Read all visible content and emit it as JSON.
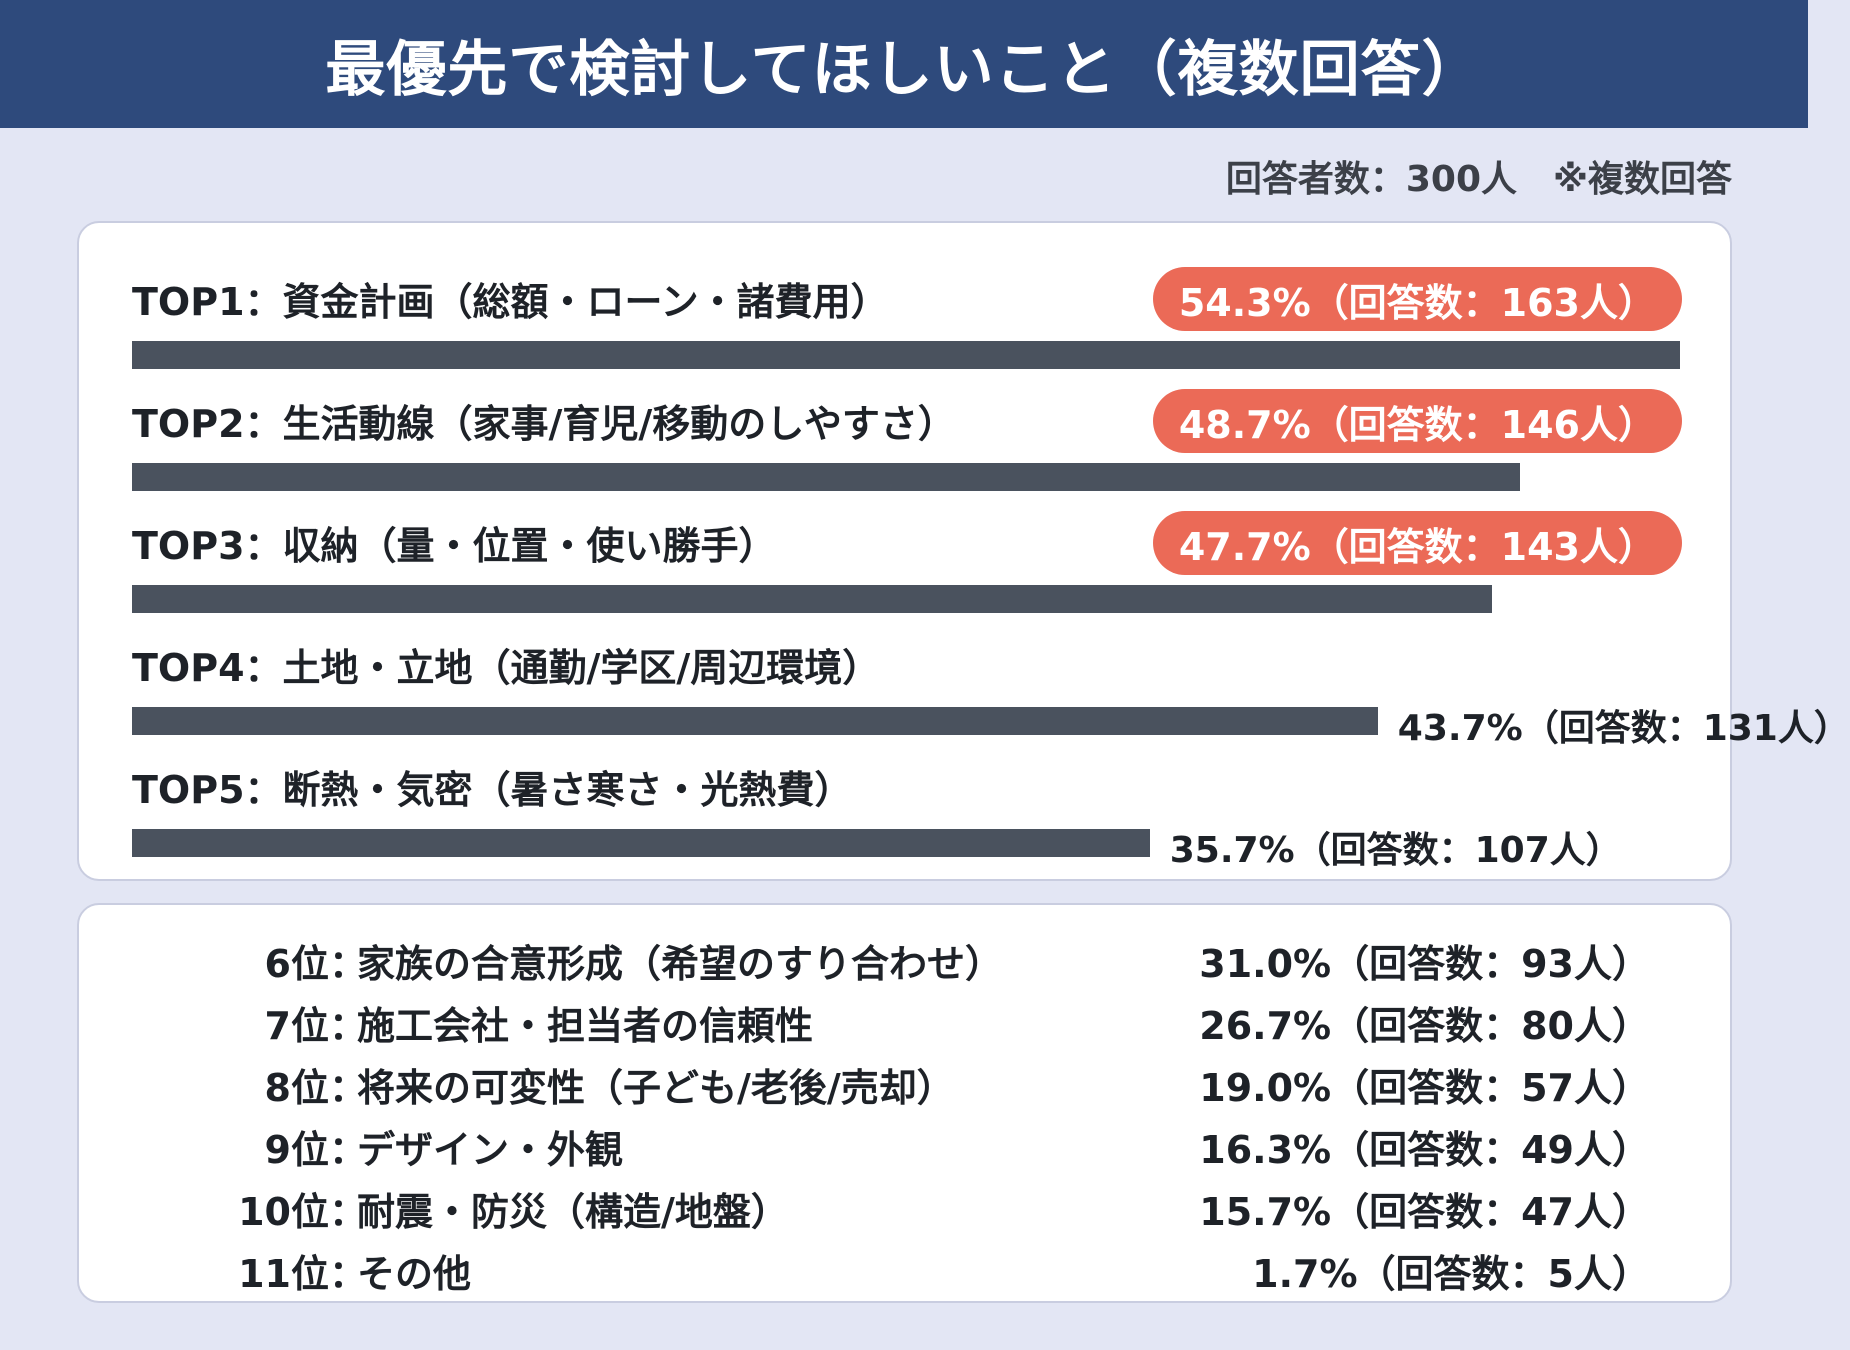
{
  "title": "最優先で検討してほしいこと（複数回答）",
  "note": {
    "respondents": "回答者数：300人",
    "multi": "※複数回答"
  },
  "colors": {
    "header": "#2e4a7c",
    "bar": "#4a525e",
    "highlight": "#eb6a57",
    "background": "#e3e6f4"
  },
  "chart_data": {
    "type": "bar",
    "orientation": "horizontal",
    "title": "最優先で検討してほしいこと（複数回答）",
    "top": [
      {
        "label": "TOP1：資金計画（総額・ローン・諸費用）",
        "value": 54.3,
        "count": 163,
        "text": "54.3%（回答数：163人）",
        "highlight": true
      },
      {
        "label": "TOP2：生活動線（家事/育児/移動のしやすさ）",
        "value": 48.7,
        "count": 146,
        "text": "48.7%（回答数：146人）",
        "highlight": true
      },
      {
        "label": "TOP3：収納（量・位置・使い勝手）",
        "value": 47.7,
        "count": 143,
        "text": "47.7%（回答数：143人）",
        "highlight": true
      },
      {
        "label": "TOP4：土地・立地（通勤/学区/周辺環境）",
        "value": 43.7,
        "count": 131,
        "text": "43.7%（回答数：131人）",
        "highlight": false
      },
      {
        "label": "TOP5：断熱・気密（暑さ寒さ・光熱費）",
        "value": 35.7,
        "count": 107,
        "text": "35.7%（回答数：107人）",
        "highlight": false
      }
    ],
    "others": [
      {
        "rank": "6位",
        "item": "家族の合意形成（希望のすり合わせ）",
        "value": 31.0,
        "count": 93,
        "text": "31.0%（回答数：93人）"
      },
      {
        "rank": "7位",
        "item": "施工会社・担当者の信頼性",
        "value": 26.7,
        "count": 80,
        "text": "26.7%（回答数：80人）"
      },
      {
        "rank": "8位",
        "item": "将来の可変性（子ども/老後/売却）",
        "value": 19.0,
        "count": 57,
        "text": "19.0%（回答数：57人）"
      },
      {
        "rank": "9位",
        "item": "デザイン・外観",
        "value": 16.3,
        "count": 49,
        "text": "16.3%（回答数：49人）"
      },
      {
        "rank": "10位",
        "item": "耐震・防災（構造/地盤）",
        "value": 15.7,
        "count": 47,
        "text": "15.7%（回答数：47人）"
      },
      {
        "rank": "11位",
        "item": "その他",
        "value": 1.7,
        "count": 5,
        "text": "1.7%（回答数：5人）"
      }
    ]
  }
}
